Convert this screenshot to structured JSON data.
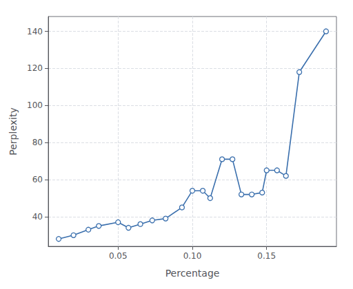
{
  "chart_data": {
    "type": "line",
    "x": [
      0.01,
      0.02,
      0.03,
      0.037,
      0.05,
      0.057,
      0.065,
      0.073,
      0.082,
      0.093,
      0.1,
      0.107,
      0.112,
      0.12,
      0.127,
      0.133,
      0.14,
      0.147,
      0.15,
      0.157,
      0.163,
      0.172,
      0.19
    ],
    "values": [
      28,
      30,
      33,
      35,
      37,
      34,
      36,
      38,
      39,
      45,
      54,
      54,
      50,
      71,
      71,
      52,
      52,
      53,
      65,
      65,
      62,
      118,
      140
    ],
    "xlabel": "Percentage",
    "ylabel": "Perplexity",
    "xlim": [
      0.003,
      0.197
    ],
    "ylim": [
      24,
      148
    ],
    "xticks": [
      0.05,
      {
        "value": 0.1,
        "label": "0.10"
      },
      0.15
    ],
    "yticks": [
      40,
      60,
      80,
      100,
      120,
      140
    ],
    "color": "#3a6fad",
    "marker": "circle",
    "grid": true
  }
}
